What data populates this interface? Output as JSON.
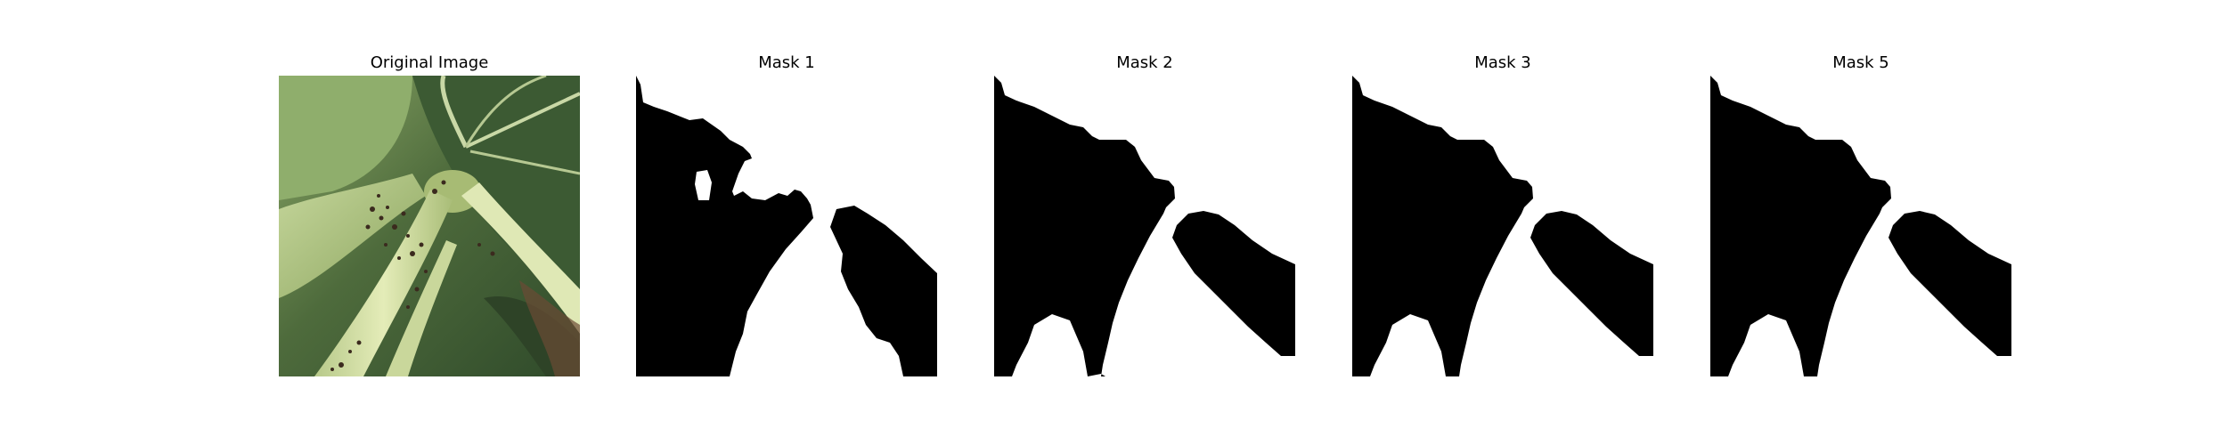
{
  "figure": {
    "panels": [
      {
        "title": "Original Image",
        "kind": "photo"
      },
      {
        "title": "Mask 1",
        "kind": "mask"
      },
      {
        "title": "Mask 2",
        "kind": "mask"
      },
      {
        "title": "Mask 3",
        "kind": "mask"
      },
      {
        "title": "Mask 5",
        "kind": "mask"
      }
    ]
  },
  "colors": {
    "background": "#ffffff",
    "mask_foreground": "#000000",
    "mask_background": "#ffffff",
    "leaf_dark": "#3f5c34",
    "leaf_mid": "#7d9a58",
    "stem_light": "#d8e2a8"
  }
}
